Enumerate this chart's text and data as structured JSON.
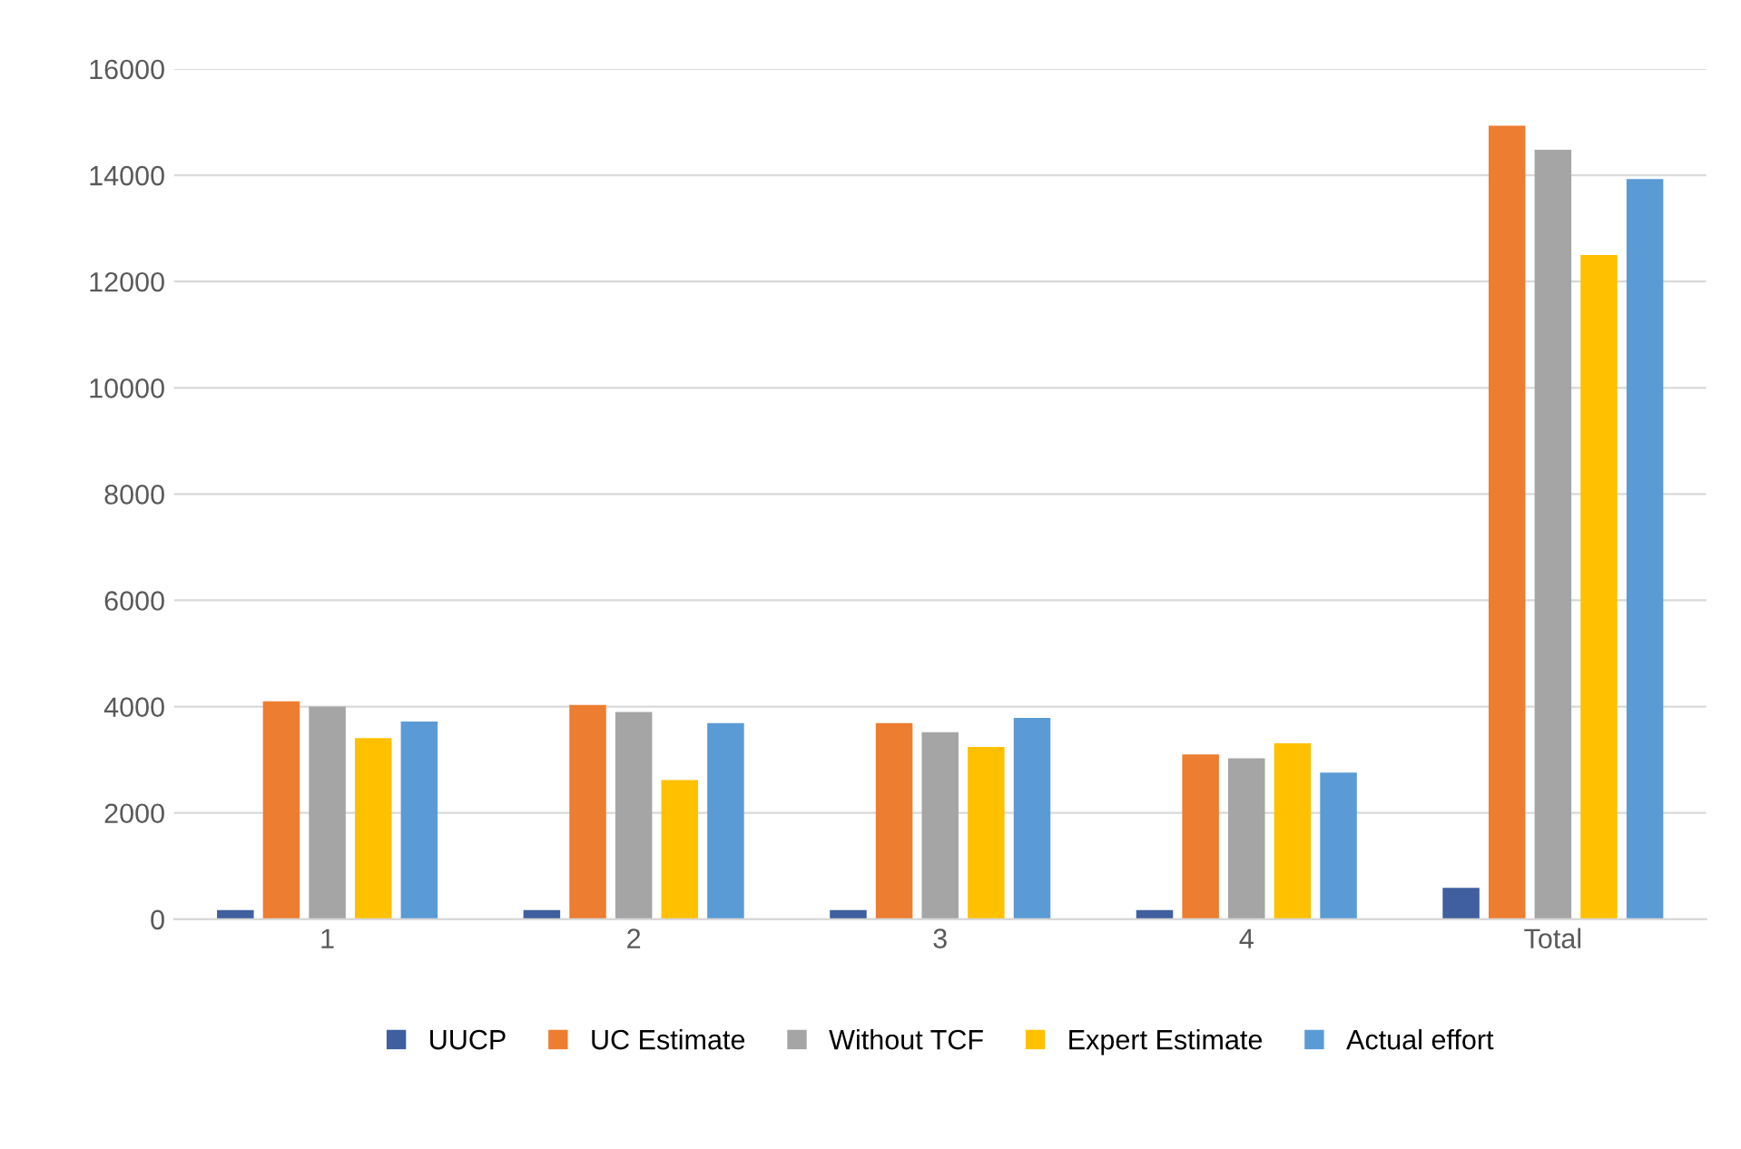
{
  "chart_data": {
    "type": "bar",
    "categories": [
      "1",
      "2",
      "3",
      "4",
      "Total"
    ],
    "series": [
      {
        "name": "UUCP",
        "color": "#3f5f9e",
        "values": [
          170,
          170,
          170,
          170,
          590
        ]
      },
      {
        "name": "UC Estimate",
        "color": "#ed7d31",
        "values": [
          4100,
          4030,
          3690,
          3100,
          14930
        ]
      },
      {
        "name": "Without TCF",
        "color": "#a5a5a5",
        "values": [
          4000,
          3900,
          3520,
          3030,
          14480
        ]
      },
      {
        "name": "Expert Estimate",
        "color": "#ffc000",
        "values": [
          3410,
          2620,
          3240,
          3310,
          12500
        ]
      },
      {
        "name": "Actual effort",
        "color": "#5b9bd5",
        "values": [
          3720,
          3690,
          3790,
          2760,
          13930
        ]
      }
    ],
    "ylim": [
      0,
      16000
    ],
    "yticks": [
      0,
      2000,
      4000,
      6000,
      8000,
      10000,
      12000,
      14000,
      16000
    ],
    "grid": "y",
    "legend": "bottom"
  }
}
